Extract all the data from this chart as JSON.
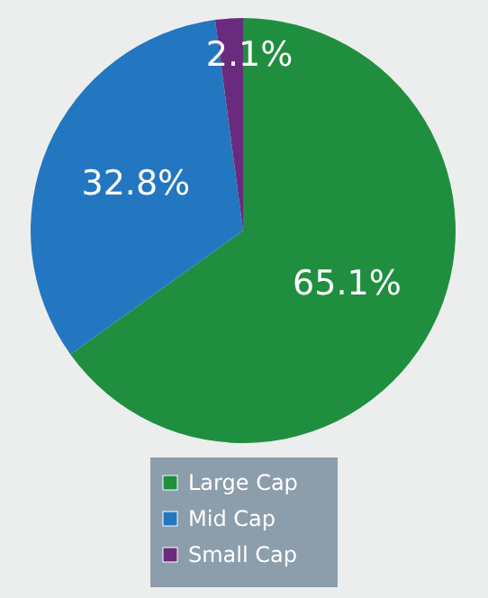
{
  "chart_data": {
    "type": "pie",
    "categories": [
      "Large Cap",
      "Mid Cap",
      "Small Cap"
    ],
    "values": [
      65.1,
      32.8,
      2.1
    ],
    "colors": [
      "#1f8f3f",
      "#2277c0",
      "#6a2a7e"
    ],
    "value_labels": [
      "65.1%",
      "32.8%",
      "2.1%"
    ],
    "legend": "bottom"
  }
}
